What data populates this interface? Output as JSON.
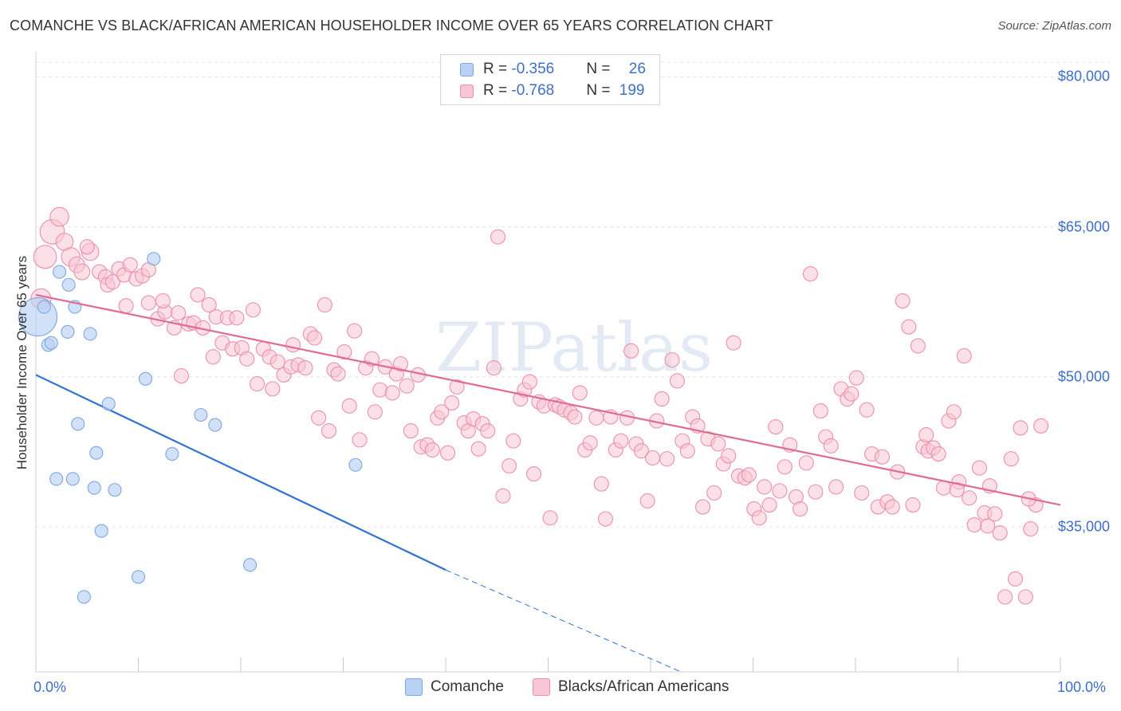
{
  "title": "COMANCHE VS BLACK/AFRICAN AMERICAN HOUSEHOLDER INCOME OVER 65 YEARS CORRELATION CHART",
  "source": "Source: ZipAtlas.com",
  "watermark": "ZIPatlas",
  "colors": {
    "comanche_fill": "#b9d1f3",
    "comanche_stroke": "#7ea6e0",
    "comanche_line": "#2f72d4",
    "black_fill": "#f8c6d6",
    "black_stroke": "#ec8fad",
    "black_line": "#e06b94",
    "axis_text": "#3d6fc9",
    "grid": "#e3e3e3"
  },
  "legend": {
    "rows": [
      {
        "r_label": "R = ",
        "r_value": "-0.356",
        "n_label": "N = ",
        "n_value": "26"
      },
      {
        "r_label": "R = ",
        "r_value": "-0.768",
        "n_label": "N = ",
        "n_value": "199"
      }
    ]
  },
  "bottom_legend": [
    "Comanche",
    "Blacks/African Americans"
  ],
  "chart_data": {
    "type": "scatter",
    "xlabel": "",
    "ylabel": "Householder Income Over 65 years",
    "xlim": [
      0,
      100
    ],
    "ylim": [
      20500,
      82500
    ],
    "x_tick_labels": [
      "0.0%",
      "100.0%"
    ],
    "y_ticks": [
      35000,
      50000,
      65000,
      80000
    ],
    "y_tick_labels": [
      "$35,000",
      "$50,000",
      "$65,000",
      "$80,000"
    ],
    "grid": true,
    "legend_position": "top-center",
    "series": [
      {
        "name": "Comanche",
        "r": -0.356,
        "n": 26,
        "trend": {
          "x0": 0,
          "y0": 50200,
          "x1": 40,
          "y1": 30700,
          "dash_to_x": 63,
          "dash_to_y": 19500
        },
        "points": [
          [
            0.2,
            56000,
            3
          ],
          [
            0.8,
            57000,
            1
          ],
          [
            1.2,
            53200,
            1
          ],
          [
            1.5,
            53400,
            1
          ],
          [
            2.3,
            60500,
            1
          ],
          [
            3.1,
            54500,
            1
          ],
          [
            3.2,
            59200,
            1
          ],
          [
            3.8,
            57000,
            1
          ],
          [
            4.1,
            45300,
            1
          ],
          [
            2.0,
            39800,
            1
          ],
          [
            3.6,
            39800,
            1
          ],
          [
            5.3,
            54300,
            1
          ],
          [
            5.7,
            38900,
            1
          ],
          [
            5.9,
            42400,
            1
          ],
          [
            6.4,
            34600,
            1
          ],
          [
            7.1,
            47300,
            1
          ],
          [
            7.7,
            38700,
            1
          ],
          [
            4.7,
            28000,
            1
          ],
          [
            10.0,
            30000,
            1
          ],
          [
            10.7,
            49800,
            1
          ],
          [
            11.5,
            61800,
            1
          ],
          [
            13.3,
            42300,
            1
          ],
          [
            16.1,
            46200,
            1
          ],
          [
            17.5,
            45200,
            1
          ],
          [
            20.9,
            31200,
            1
          ],
          [
            31.2,
            41200,
            1
          ]
        ]
      },
      {
        "name": "Blacks/African Americans",
        "r": -0.768,
        "n": 199,
        "trend": {
          "x0": 0,
          "y0": 58200,
          "x1": 100,
          "y1": 37200
        },
        "points": [
          [
            0.5,
            57800,
            1.4
          ],
          [
            0.9,
            62000,
            1.6
          ],
          [
            1.6,
            64500,
            1.7
          ],
          [
            2.3,
            66000,
            1.3
          ],
          [
            2.8,
            63500,
            1.2
          ],
          [
            3.4,
            62000,
            1.3
          ],
          [
            4.0,
            61200,
            1.1
          ],
          [
            4.5,
            60500,
            1.1
          ],
          [
            5.3,
            62500,
            1.2
          ],
          [
            5.0,
            63000,
            1
          ],
          [
            6.2,
            60500,
            1
          ],
          [
            6.8,
            60000,
            1
          ],
          [
            7.0,
            59200,
            1
          ],
          [
            7.5,
            59500,
            1
          ],
          [
            8.1,
            60800,
            1
          ],
          [
            8.6,
            60200,
            1
          ],
          [
            9.2,
            61200,
            1
          ],
          [
            9.8,
            59800,
            1
          ],
          [
            10.4,
            60100,
            1
          ],
          [
            11.0,
            60700,
            1
          ],
          [
            8.8,
            57100,
            1
          ],
          [
            11.0,
            57400,
            1
          ],
          [
            11.9,
            55800,
            1
          ],
          [
            12.6,
            56500,
            1
          ],
          [
            12.4,
            57600,
            1
          ],
          [
            13.5,
            54900,
            1
          ],
          [
            13.9,
            56400,
            1
          ],
          [
            14.2,
            50100,
            1
          ],
          [
            14.9,
            55300,
            1
          ],
          [
            15.4,
            55400,
            1
          ],
          [
            15.8,
            58200,
            1
          ],
          [
            16.3,
            54900,
            1
          ],
          [
            16.9,
            57200,
            1
          ],
          [
            17.3,
            52000,
            1
          ],
          [
            17.6,
            56000,
            1
          ],
          [
            18.2,
            53400,
            1
          ],
          [
            18.7,
            55900,
            1
          ],
          [
            19.2,
            52800,
            1
          ],
          [
            19.6,
            55900,
            1
          ],
          [
            20.1,
            52900,
            1
          ],
          [
            20.6,
            51800,
            1
          ],
          [
            21.2,
            56700,
            1
          ],
          [
            21.6,
            49300,
            1
          ],
          [
            22.2,
            52800,
            1
          ],
          [
            22.8,
            52000,
            1
          ],
          [
            23.1,
            48800,
            1
          ],
          [
            23.6,
            51500,
            1
          ],
          [
            24.2,
            50200,
            1
          ],
          [
            24.9,
            51000,
            1
          ],
          [
            25.1,
            53200,
            1
          ],
          [
            25.6,
            51200,
            1
          ],
          [
            26.3,
            50900,
            1
          ],
          [
            26.8,
            54300,
            1
          ],
          [
            27.2,
            53900,
            1
          ],
          [
            27.6,
            45900,
            1
          ],
          [
            28.2,
            57200,
            1
          ],
          [
            28.6,
            44600,
            1
          ],
          [
            29.1,
            50700,
            1
          ],
          [
            29.5,
            50300,
            1
          ],
          [
            30.1,
            52500,
            1
          ],
          [
            30.6,
            47100,
            1
          ],
          [
            31.1,
            54600,
            1
          ],
          [
            31.6,
            43700,
            1
          ],
          [
            32.2,
            50900,
            1
          ],
          [
            32.8,
            51800,
            1
          ],
          [
            33.1,
            46500,
            1
          ],
          [
            33.6,
            48700,
            1
          ],
          [
            34.1,
            51000,
            1
          ],
          [
            34.8,
            48400,
            1
          ],
          [
            35.2,
            50300,
            1
          ],
          [
            35.6,
            51300,
            1
          ],
          [
            36.2,
            49100,
            1
          ],
          [
            36.6,
            44600,
            1
          ],
          [
            37.3,
            50200,
            1
          ],
          [
            37.6,
            43000,
            1
          ],
          [
            38.2,
            43200,
            1
          ],
          [
            38.7,
            42700,
            1
          ],
          [
            39.2,
            45900,
            1
          ],
          [
            39.6,
            46500,
            1
          ],
          [
            40.2,
            42400,
            1
          ],
          [
            40.6,
            47400,
            1
          ],
          [
            41.1,
            49000,
            1
          ],
          [
            41.8,
            45400,
            1
          ],
          [
            42.2,
            44600,
            1
          ],
          [
            42.7,
            45800,
            1
          ],
          [
            43.2,
            42800,
            1
          ],
          [
            43.6,
            45300,
            1
          ],
          [
            44.1,
            44600,
            1
          ],
          [
            44.7,
            50900,
            1
          ],
          [
            45.1,
            64000,
            1
          ],
          [
            45.6,
            38100,
            1
          ],
          [
            46.2,
            41100,
            1
          ],
          [
            46.6,
            43600,
            1
          ],
          [
            47.3,
            47800,
            1
          ],
          [
            47.7,
            48700,
            1
          ],
          [
            48.2,
            49500,
            1
          ],
          [
            48.6,
            40300,
            1
          ],
          [
            49.1,
            47500,
            1
          ],
          [
            49.6,
            47100,
            1
          ],
          [
            50.2,
            35900,
            1
          ],
          [
            50.7,
            47200,
            1
          ],
          [
            51.1,
            47000,
            1
          ],
          [
            51.6,
            46700,
            1
          ],
          [
            52.2,
            46400,
            1
          ],
          [
            52.6,
            46000,
            1
          ],
          [
            53.1,
            48400,
            1
          ],
          [
            53.6,
            42700,
            1
          ],
          [
            54.1,
            43400,
            1
          ],
          [
            54.7,
            45900,
            1
          ],
          [
            55.2,
            39300,
            1
          ],
          [
            55.6,
            35800,
            1
          ],
          [
            56.1,
            46000,
            1
          ],
          [
            56.6,
            42700,
            1
          ],
          [
            57.1,
            43600,
            1
          ],
          [
            57.7,
            45900,
            1
          ],
          [
            58.1,
            52600,
            1
          ],
          [
            58.6,
            43300,
            1
          ],
          [
            59.1,
            42600,
            1
          ],
          [
            59.7,
            37600,
            1
          ],
          [
            60.2,
            41900,
            1
          ],
          [
            60.6,
            45600,
            1
          ],
          [
            61.1,
            47800,
            1
          ],
          [
            61.6,
            41800,
            1
          ],
          [
            62.1,
            51700,
            1
          ],
          [
            62.6,
            49600,
            1
          ],
          [
            63.1,
            43600,
            1
          ],
          [
            63.6,
            42600,
            1
          ],
          [
            64.1,
            46000,
            1
          ],
          [
            64.6,
            45100,
            1
          ],
          [
            65.1,
            37000,
            1
          ],
          [
            65.6,
            43800,
            1
          ],
          [
            66.2,
            38400,
            1
          ],
          [
            66.6,
            43300,
            1
          ],
          [
            67.1,
            41300,
            1
          ],
          [
            67.6,
            42100,
            1
          ],
          [
            68.1,
            53400,
            1
          ],
          [
            68.6,
            40100,
            1
          ],
          [
            69.2,
            39900,
            1
          ],
          [
            69.6,
            40200,
            1
          ],
          [
            70.1,
            36800,
            1
          ],
          [
            70.6,
            35900,
            1
          ],
          [
            71.1,
            39000,
            1
          ],
          [
            71.6,
            37200,
            1
          ],
          [
            72.2,
            45000,
            1
          ],
          [
            72.6,
            38600,
            1
          ],
          [
            73.1,
            41000,
            1
          ],
          [
            73.6,
            43200,
            1
          ],
          [
            74.2,
            38000,
            1
          ],
          [
            74.6,
            36800,
            1
          ],
          [
            75.2,
            41400,
            1
          ],
          [
            75.6,
            60300,
            1
          ],
          [
            76.1,
            38500,
            1
          ],
          [
            76.6,
            46600,
            1
          ],
          [
            77.1,
            44000,
            1
          ],
          [
            77.6,
            43100,
            1
          ],
          [
            78.1,
            39000,
            1
          ],
          [
            78.6,
            48800,
            1
          ],
          [
            79.2,
            47800,
            1
          ],
          [
            79.6,
            48300,
            1
          ],
          [
            80.1,
            49900,
            1
          ],
          [
            80.6,
            38400,
            1
          ],
          [
            81.1,
            46700,
            1
          ],
          [
            81.6,
            42300,
            1
          ],
          [
            82.2,
            37000,
            1
          ],
          [
            82.6,
            42000,
            1
          ],
          [
            83.1,
            37500,
            1
          ],
          [
            83.6,
            37000,
            1
          ],
          [
            84.1,
            40500,
            1
          ],
          [
            84.6,
            57600,
            1
          ],
          [
            85.2,
            55000,
            1
          ],
          [
            85.6,
            37200,
            1
          ],
          [
            86.1,
            53100,
            1
          ],
          [
            86.6,
            43000,
            1
          ],
          [
            87.1,
            42600,
            1
          ],
          [
            87.6,
            42900,
            1
          ],
          [
            88.1,
            42300,
            1
          ],
          [
            88.6,
            38900,
            1
          ],
          [
            89.1,
            45600,
            1
          ],
          [
            89.6,
            46500,
            1
          ],
          [
            90.1,
            39500,
            1
          ],
          [
            90.6,
            52100,
            1
          ],
          [
            91.1,
            37900,
            1
          ],
          [
            91.6,
            35200,
            1
          ],
          [
            92.1,
            40900,
            1
          ],
          [
            92.6,
            36400,
            1
          ],
          [
            93.1,
            39100,
            1
          ],
          [
            93.6,
            36300,
            1
          ],
          [
            94.1,
            34400,
            1
          ],
          [
            94.6,
            28000,
            1
          ],
          [
            95.2,
            41800,
            1
          ],
          [
            95.6,
            29800,
            1
          ],
          [
            96.1,
            44900,
            1
          ],
          [
            96.6,
            28000,
            1
          ],
          [
            97.1,
            34800,
            1
          ],
          [
            97.6,
            37200,
            1
          ],
          [
            98.1,
            45100,
            1
          ],
          [
            96.9,
            37800,
            1
          ],
          [
            92.9,
            35100,
            1
          ],
          [
            89.9,
            38700,
            1
          ],
          [
            86.9,
            44200,
            1
          ]
        ]
      }
    ]
  }
}
